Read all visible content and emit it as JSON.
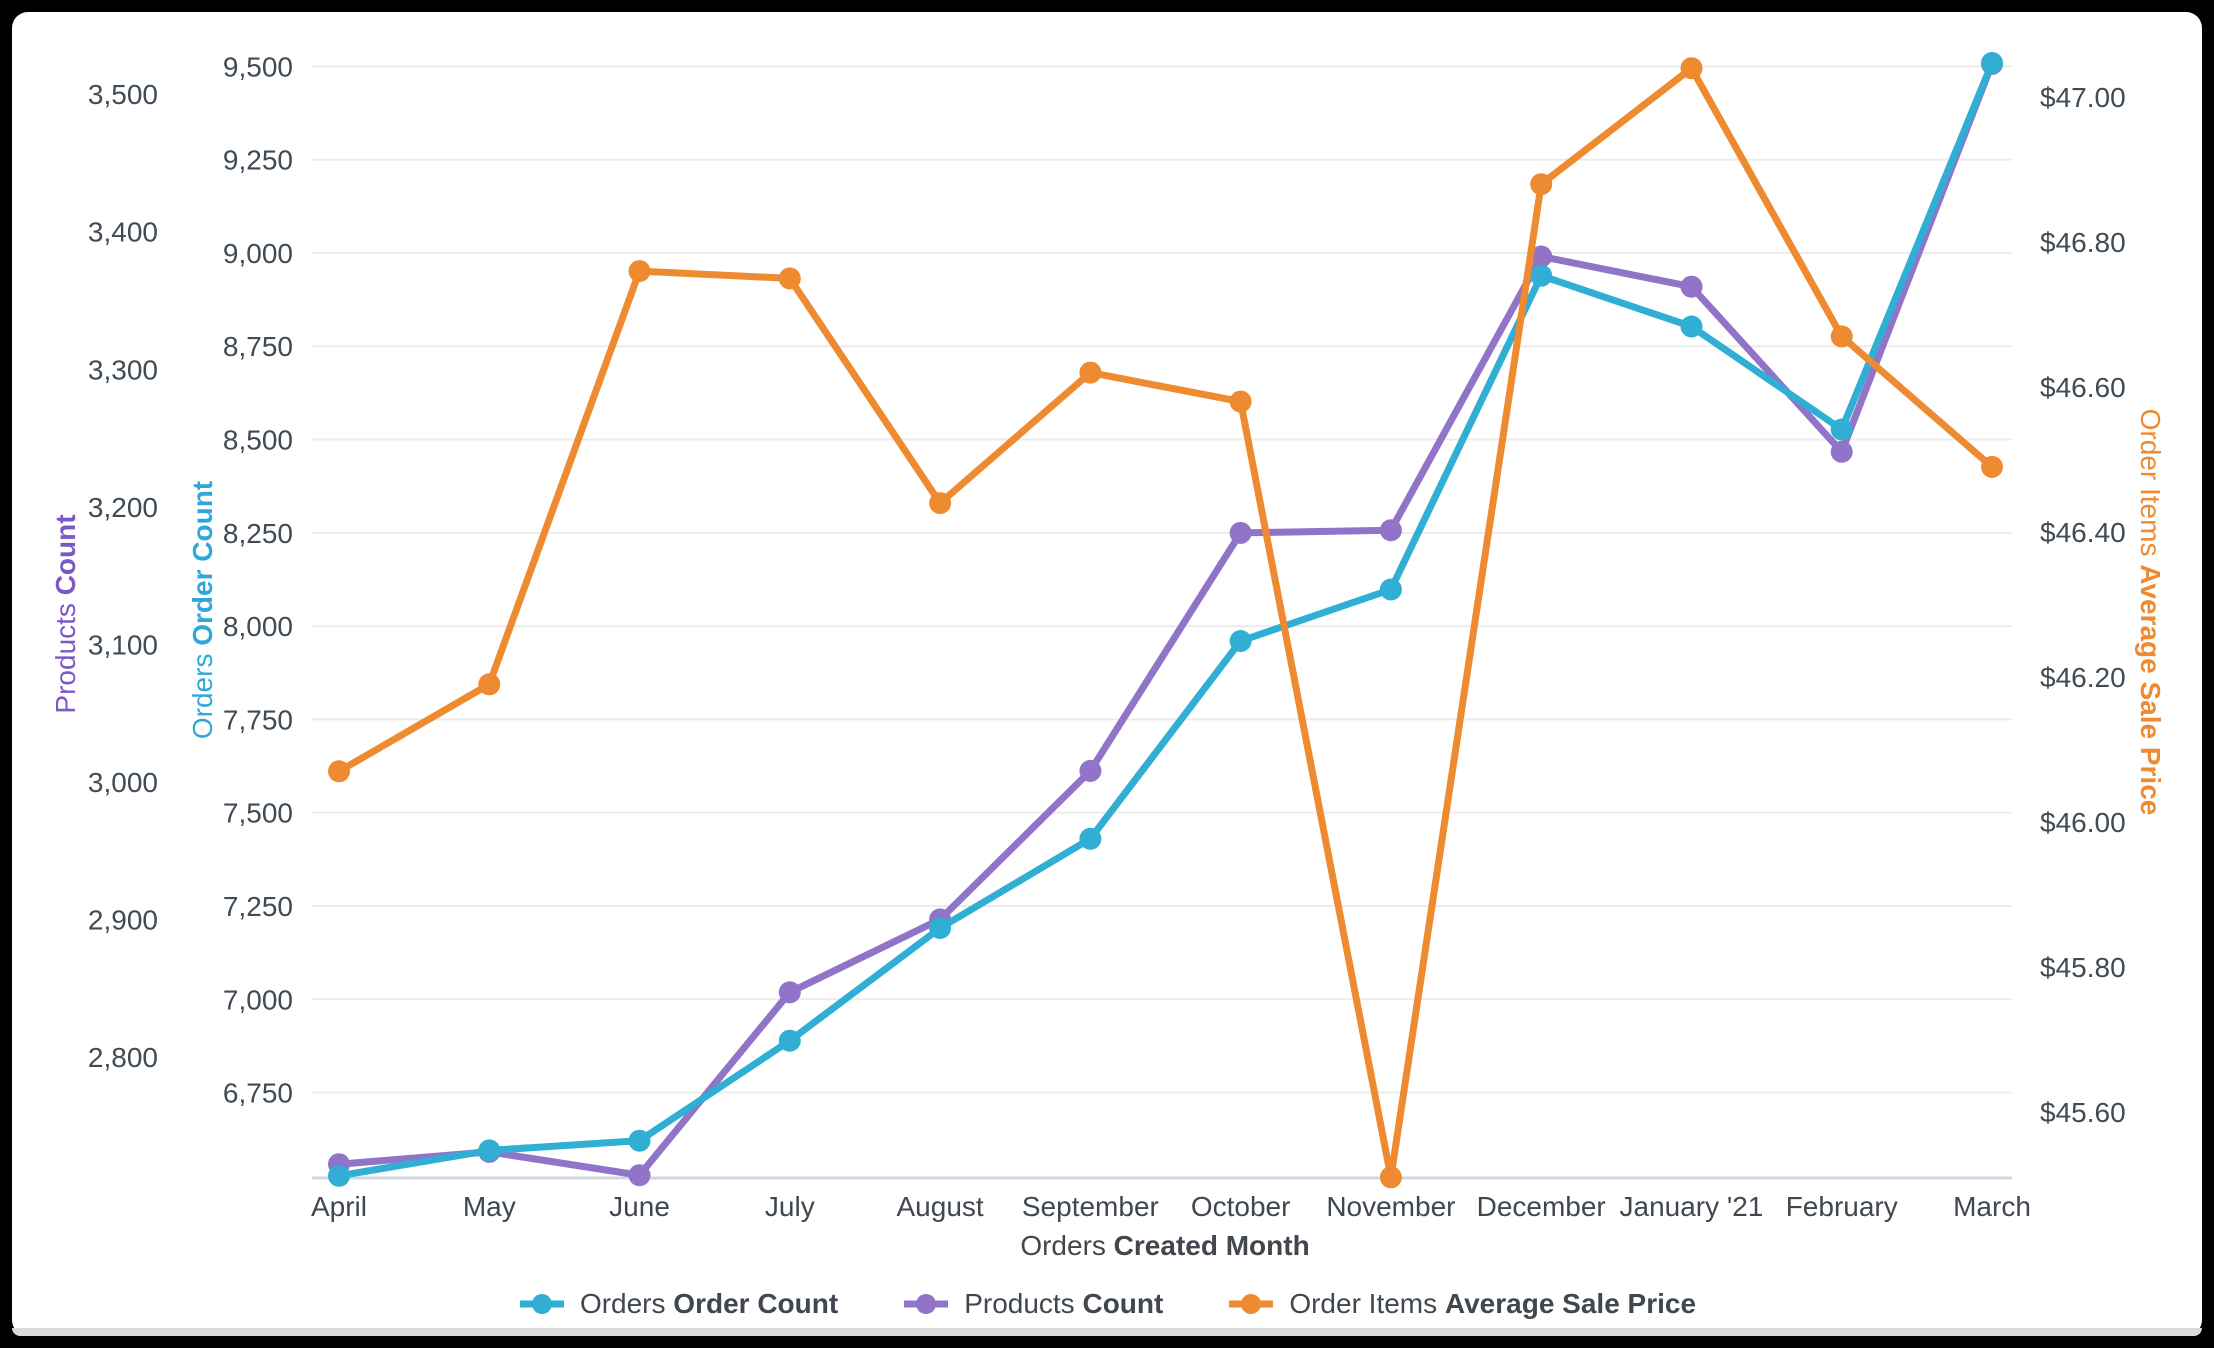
{
  "frame": {
    "background": "#000000",
    "card_background": "#ffffff"
  },
  "colors": {
    "gridline": "#ececec",
    "baseline": "#cdd8e3",
    "tick_text": "#404B55",
    "label_text": "#40474E"
  },
  "chart_data": {
    "type": "line",
    "categories": [
      "April",
      "May",
      "June",
      "July",
      "August",
      "September",
      "October",
      "November",
      "December",
      "January '21",
      "February",
      "March"
    ],
    "x_axis": {
      "title_regular": "Orders ",
      "title_bold": "Created Month"
    },
    "axes": {
      "products": {
        "title_regular": "Products ",
        "title_bold": "Count",
        "title_full": "Products Count",
        "color": "#7C57C6",
        "ticks": [
          2800,
          2900,
          3000,
          3100,
          3200,
          3300,
          3400,
          3500
        ],
        "range_top": 3520.5,
        "range_bottom": 2712,
        "format": "number",
        "side": "outer-left"
      },
      "orders": {
        "title_regular": "Orders ",
        "title_bold": "Order Count",
        "title_full": "Orders Order Count",
        "color": "#2FA8D9",
        "ticks": [
          6750,
          7000,
          7250,
          7500,
          7750,
          8000,
          8250,
          8500,
          8750,
          9000,
          9250,
          9500
        ],
        "range_top": 9501,
        "range_bottom": 6521,
        "format": "number",
        "side": "inner-left",
        "gridlines": true
      },
      "price": {
        "title_regular": "Order Items ",
        "title_bold": "Average Sale Price",
        "title_full": "Order Items Average Sale Price",
        "color": "#EE8A2F",
        "ticks": [
          45.6,
          45.8,
          46.0,
          46.2,
          46.4,
          46.6,
          46.8,
          47.0
        ],
        "range_top": 47.043,
        "range_bottom": 45.509,
        "format": "currency",
        "side": "right"
      }
    },
    "series": [
      {
        "id": "orders",
        "name": "Orders Order Count",
        "axis": "orders",
        "color": "#30AED4",
        "values": [
          6527,
          6595,
          6621,
          6889,
          7191,
          7430,
          7960,
          8098,
          8939,
          8803,
          8527,
          9509
        ]
      },
      {
        "id": "products",
        "name": "Products Count",
        "axis": "products",
        "color": "#9174C8",
        "values": [
          2722,
          2731,
          2714,
          2847,
          2900,
          3008,
          3181,
          3183,
          3382,
          3360,
          3240,
          3522
        ]
      },
      {
        "id": "price",
        "name": "Order Items Average Sale Price",
        "axis": "price",
        "color": "#EE8A2F",
        "values": [
          46.07,
          46.19,
          46.76,
          46.75,
          46.44,
          46.62,
          46.58,
          45.51,
          46.88,
          47.04,
          46.67,
          46.49
        ]
      }
    ],
    "legend": [
      {
        "regular": "Orders ",
        "bold": "Order Count",
        "series": "orders"
      },
      {
        "regular": "Products ",
        "bold": "Count",
        "series": "products"
      },
      {
        "regular": "Order Items ",
        "bold": "Average Sale Price",
        "series": "price"
      }
    ],
    "layout_hints": {
      "legend_position": "bottom",
      "grid": "horizontal-only",
      "draw_order": [
        "products",
        "orders",
        "price"
      ]
    }
  }
}
